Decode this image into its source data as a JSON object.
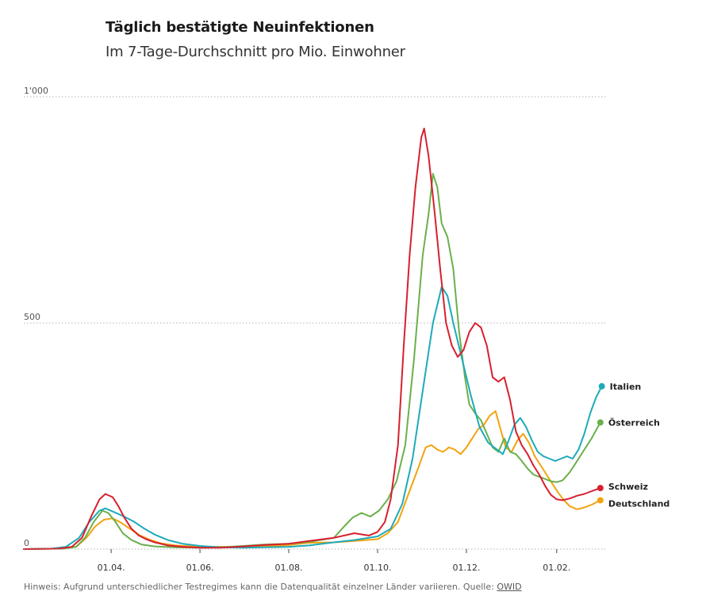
{
  "chart_data": {
    "type": "line",
    "title": "Täglich bestätigte Neuinfektionen",
    "subtitle": "Im 7-Tage-Durchschnitt pro Mio. Einwohner",
    "xlabel": "",
    "ylabel": "",
    "ylim": [
      0,
      1000
    ],
    "yticks": [
      {
        "value": 0,
        "label": "0"
      },
      {
        "value": 500,
        "label": "500"
      },
      {
        "value": 1000,
        "label": "1'000"
      }
    ],
    "xlim": [
      "2020-02-01",
      "2021-03-08"
    ],
    "xticks": [
      {
        "date": "2020-04-01",
        "label": "01.04."
      },
      {
        "date": "2020-06-01",
        "label": "01.06."
      },
      {
        "date": "2020-08-01",
        "label": "01.08."
      },
      {
        "date": "2020-10-01",
        "label": "01.10."
      },
      {
        "date": "2020-12-01",
        "label": "01.12."
      },
      {
        "date": "2021-02-01",
        "label": "01.02."
      }
    ],
    "grid": true,
    "legend": "end-of-line labels",
    "series": [
      {
        "name": "Schweiz",
        "color": "#d7202f",
        "points": [
          [
            "2020-02-01",
            0
          ],
          [
            "2020-02-25",
            1
          ],
          [
            "2020-03-05",
            5
          ],
          [
            "2020-03-12",
            25
          ],
          [
            "2020-03-18",
            70
          ],
          [
            "2020-03-24",
            110
          ],
          [
            "2020-03-28",
            122
          ],
          [
            "2020-04-02",
            115
          ],
          [
            "2020-04-06",
            95
          ],
          [
            "2020-04-10",
            70
          ],
          [
            "2020-04-15",
            45
          ],
          [
            "2020-04-20",
            30
          ],
          [
            "2020-04-25",
            22
          ],
          [
            "2020-05-01",
            15
          ],
          [
            "2020-05-10",
            8
          ],
          [
            "2020-05-20",
            5
          ],
          [
            "2020-06-01",
            3
          ],
          [
            "2020-06-15",
            3
          ],
          [
            "2020-07-01",
            6
          ],
          [
            "2020-07-15",
            9
          ],
          [
            "2020-08-01",
            12
          ],
          [
            "2020-08-15",
            18
          ],
          [
            "2020-09-01",
            25
          ],
          [
            "2020-09-15",
            35
          ],
          [
            "2020-09-25",
            30
          ],
          [
            "2020-10-01",
            38
          ],
          [
            "2020-10-06",
            60
          ],
          [
            "2020-10-10",
            110
          ],
          [
            "2020-10-15",
            230
          ],
          [
            "2020-10-19",
            450
          ],
          [
            "2020-10-23",
            650
          ],
          [
            "2020-10-27",
            800
          ],
          [
            "2020-10-31",
            910
          ],
          [
            "2020-11-02",
            930
          ],
          [
            "2020-11-05",
            870
          ],
          [
            "2020-11-09",
            750
          ],
          [
            "2020-11-13",
            620
          ],
          [
            "2020-11-17",
            500
          ],
          [
            "2020-11-21",
            450
          ],
          [
            "2020-11-25",
            425
          ],
          [
            "2020-11-29",
            440
          ],
          [
            "2020-12-03",
            480
          ],
          [
            "2020-12-07",
            500
          ],
          [
            "2020-12-11",
            490
          ],
          [
            "2020-12-15",
            450
          ],
          [
            "2020-12-19",
            380
          ],
          [
            "2020-12-23",
            370
          ],
          [
            "2020-12-27",
            380
          ],
          [
            "2020-12-31",
            330
          ],
          [
            "2021-01-04",
            260
          ],
          [
            "2021-01-08",
            230
          ],
          [
            "2021-01-12",
            210
          ],
          [
            "2021-01-16",
            185
          ],
          [
            "2021-01-20",
            165
          ],
          [
            "2021-01-24",
            140
          ],
          [
            "2021-01-28",
            120
          ],
          [
            "2021-02-01",
            110
          ],
          [
            "2021-02-05",
            108
          ],
          [
            "2021-02-10",
            112
          ],
          [
            "2021-02-15",
            118
          ],
          [
            "2021-02-20",
            122
          ],
          [
            "2021-02-25",
            128
          ],
          [
            "2021-03-03",
            135
          ]
        ]
      },
      {
        "name": "Italien",
        "color": "#1eaab9",
        "points": [
          [
            "2020-02-01",
            0
          ],
          [
            "2020-02-20",
            1
          ],
          [
            "2020-03-01",
            5
          ],
          [
            "2020-03-10",
            25
          ],
          [
            "2020-03-17",
            60
          ],
          [
            "2020-03-24",
            85
          ],
          [
            "2020-03-28",
            90
          ],
          [
            "2020-04-03",
            82
          ],
          [
            "2020-04-10",
            72
          ],
          [
            "2020-04-17",
            60
          ],
          [
            "2020-04-24",
            45
          ],
          [
            "2020-05-01",
            32
          ],
          [
            "2020-05-10",
            20
          ],
          [
            "2020-05-20",
            12
          ],
          [
            "2020-06-01",
            7
          ],
          [
            "2020-06-15",
            4
          ],
          [
            "2020-07-01",
            3
          ],
          [
            "2020-07-15",
            4
          ],
          [
            "2020-08-01",
            5
          ],
          [
            "2020-08-15",
            8
          ],
          [
            "2020-09-01",
            15
          ],
          [
            "2020-09-15",
            20
          ],
          [
            "2020-10-01",
            28
          ],
          [
            "2020-10-10",
            45
          ],
          [
            "2020-10-18",
            100
          ],
          [
            "2020-10-25",
            200
          ],
          [
            "2020-11-01",
            350
          ],
          [
            "2020-11-08",
            500
          ],
          [
            "2020-11-14",
            580
          ],
          [
            "2020-11-18",
            560
          ],
          [
            "2020-11-22",
            500
          ],
          [
            "2020-11-28",
            420
          ],
          [
            "2020-12-04",
            340
          ],
          [
            "2020-12-10",
            270
          ],
          [
            "2020-12-16",
            235
          ],
          [
            "2020-12-22",
            220
          ],
          [
            "2020-12-26",
            210
          ],
          [
            "2020-12-30",
            240
          ],
          [
            "2021-01-03",
            275
          ],
          [
            "2021-01-07",
            290
          ],
          [
            "2021-01-11",
            270
          ],
          [
            "2021-01-15",
            240
          ],
          [
            "2021-01-19",
            215
          ],
          [
            "2021-01-23",
            205
          ],
          [
            "2021-01-27",
            200
          ],
          [
            "2021-01-31",
            195
          ],
          [
            "2021-02-04",
            200
          ],
          [
            "2021-02-08",
            205
          ],
          [
            "2021-02-12",
            200
          ],
          [
            "2021-02-16",
            220
          ],
          [
            "2021-02-20",
            255
          ],
          [
            "2021-02-24",
            300
          ],
          [
            "2021-02-28",
            335
          ],
          [
            "2021-03-04",
            360
          ]
        ]
      },
      {
        "name": "Österreich",
        "color": "#6ab04c",
        "points": [
          [
            "2020-02-01",
            0
          ],
          [
            "2020-02-28",
            1
          ],
          [
            "2020-03-08",
            5
          ],
          [
            "2020-03-14",
            25
          ],
          [
            "2020-03-20",
            60
          ],
          [
            "2020-03-26",
            85
          ],
          [
            "2020-03-30",
            80
          ],
          [
            "2020-04-04",
            60
          ],
          [
            "2020-04-09",
            35
          ],
          [
            "2020-04-15",
            20
          ],
          [
            "2020-04-22",
            10
          ],
          [
            "2020-05-01",
            6
          ],
          [
            "2020-05-15",
            4
          ],
          [
            "2020-06-01",
            3
          ],
          [
            "2020-06-15",
            4
          ],
          [
            "2020-07-01",
            7
          ],
          [
            "2020-07-15",
            10
          ],
          [
            "2020-08-01",
            12
          ],
          [
            "2020-08-15",
            16
          ],
          [
            "2020-09-01",
            25
          ],
          [
            "2020-09-08",
            50
          ],
          [
            "2020-09-14",
            70
          ],
          [
            "2020-09-20",
            80
          ],
          [
            "2020-09-26",
            72
          ],
          [
            "2020-10-02",
            85
          ],
          [
            "2020-10-08",
            110
          ],
          [
            "2020-10-14",
            150
          ],
          [
            "2020-10-20",
            230
          ],
          [
            "2020-10-26",
            420
          ],
          [
            "2020-11-01",
            650
          ],
          [
            "2020-11-05",
            740
          ],
          [
            "2020-11-08",
            830
          ],
          [
            "2020-11-11",
            800
          ],
          [
            "2020-11-14",
            720
          ],
          [
            "2020-11-18",
            690
          ],
          [
            "2020-11-22",
            620
          ],
          [
            "2020-11-26",
            480
          ],
          [
            "2020-11-30",
            380
          ],
          [
            "2020-12-03",
            320
          ],
          [
            "2020-12-07",
            300
          ],
          [
            "2020-12-11",
            285
          ],
          [
            "2020-12-15",
            255
          ],
          [
            "2020-12-19",
            225
          ],
          [
            "2020-12-23",
            215
          ],
          [
            "2020-12-27",
            245
          ],
          [
            "2020-12-31",
            215
          ],
          [
            "2021-01-04",
            210
          ],
          [
            "2021-01-08",
            195
          ],
          [
            "2021-01-12",
            178
          ],
          [
            "2021-01-16",
            165
          ],
          [
            "2021-01-20",
            160
          ],
          [
            "2021-01-24",
            155
          ],
          [
            "2021-01-28",
            150
          ],
          [
            "2021-02-01",
            148
          ],
          [
            "2021-02-05",
            152
          ],
          [
            "2021-02-10",
            170
          ],
          [
            "2021-02-15",
            195
          ],
          [
            "2021-02-20",
            220
          ],
          [
            "2021-02-25",
            245
          ],
          [
            "2021-03-03",
            280
          ]
        ]
      },
      {
        "name": "Deutschland",
        "color": "#f2a30f",
        "points": [
          [
            "2020-02-01",
            0
          ],
          [
            "2020-02-28",
            1
          ],
          [
            "2020-03-08",
            5
          ],
          [
            "2020-03-15",
            25
          ],
          [
            "2020-03-21",
            50
          ],
          [
            "2020-03-27",
            65
          ],
          [
            "2020-04-02",
            68
          ],
          [
            "2020-04-07",
            60
          ],
          [
            "2020-04-14",
            45
          ],
          [
            "2020-04-21",
            30
          ],
          [
            "2020-04-28",
            20
          ],
          [
            "2020-05-05",
            13
          ],
          [
            "2020-05-15",
            8
          ],
          [
            "2020-06-01",
            5
          ],
          [
            "2020-06-15",
            5
          ],
          [
            "2020-07-01",
            5
          ],
          [
            "2020-07-15",
            6
          ],
          [
            "2020-08-01",
            9
          ],
          [
            "2020-08-15",
            14
          ],
          [
            "2020-09-01",
            15
          ],
          [
            "2020-09-15",
            18
          ],
          [
            "2020-10-01",
            22
          ],
          [
            "2020-10-08",
            35
          ],
          [
            "2020-10-15",
            60
          ],
          [
            "2020-10-22",
            120
          ],
          [
            "2020-10-29",
            180
          ],
          [
            "2020-11-03",
            225
          ],
          [
            "2020-11-07",
            230
          ],
          [
            "2020-11-11",
            220
          ],
          [
            "2020-11-15",
            215
          ],
          [
            "2020-11-19",
            225
          ],
          [
            "2020-11-23",
            220
          ],
          [
            "2020-11-27",
            210
          ],
          [
            "2020-12-01",
            225
          ],
          [
            "2020-12-05",
            245
          ],
          [
            "2020-12-09",
            265
          ],
          [
            "2020-12-13",
            275
          ],
          [
            "2020-12-17",
            295
          ],
          [
            "2020-12-21",
            305
          ],
          [
            "2020-12-24",
            270
          ],
          [
            "2020-12-28",
            225
          ],
          [
            "2021-01-01",
            215
          ],
          [
            "2021-01-05",
            240
          ],
          [
            "2021-01-09",
            255
          ],
          [
            "2021-01-13",
            235
          ],
          [
            "2021-01-17",
            205
          ],
          [
            "2021-01-21",
            185
          ],
          [
            "2021-01-25",
            165
          ],
          [
            "2021-01-29",
            145
          ],
          [
            "2021-02-02",
            125
          ],
          [
            "2021-02-06",
            108
          ],
          [
            "2021-02-10",
            95
          ],
          [
            "2021-02-15",
            88
          ],
          [
            "2021-02-20",
            92
          ],
          [
            "2021-02-25",
            98
          ],
          [
            "2021-03-03",
            108
          ]
        ]
      }
    ]
  },
  "footnote": {
    "text": "Hinweis: Aufgrund unterschiedlicher Testregimes kann die Datenqualität einzelner Länder variieren. Quelle: ",
    "source": "OWID"
  }
}
